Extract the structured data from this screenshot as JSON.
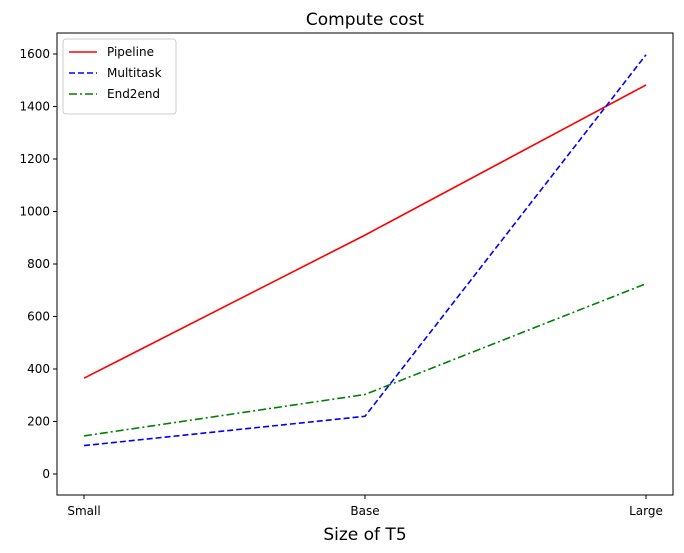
{
  "chart_data": {
    "type": "line",
    "title": "Compute cost",
    "xlabel": "Size of T5",
    "ylabel": "",
    "categories": [
      "Small",
      "Base",
      "Large"
    ],
    "ylim": [
      -80,
      1680
    ],
    "yticks": [
      0,
      200,
      400,
      600,
      800,
      1000,
      1200,
      1400,
      1600
    ],
    "grid": false,
    "legend_position": "top-left",
    "series": [
      {
        "name": "Pipeline",
        "values": [
          365,
          910,
          1482
        ],
        "color": "#ff0000",
        "style": "solid"
      },
      {
        "name": "Multitask",
        "values": [
          108,
          220,
          1597
        ],
        "color": "#0000ff",
        "style": "dashed"
      },
      {
        "name": "End2end",
        "values": [
          145,
          303,
          725
        ],
        "color": "#008000",
        "style": "dashdot"
      }
    ]
  }
}
